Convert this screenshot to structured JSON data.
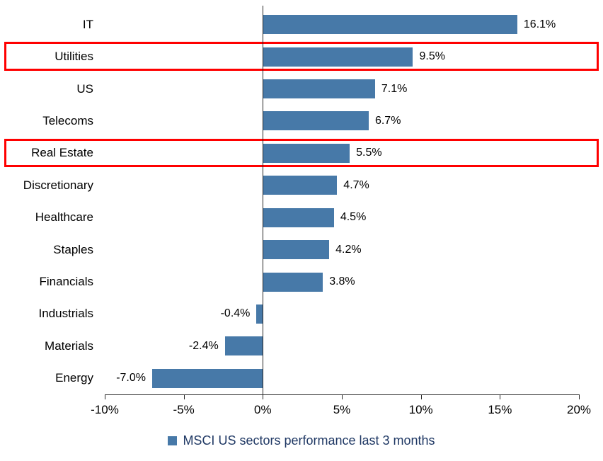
{
  "chart_data": {
    "type": "bar",
    "orientation": "horizontal",
    "title": "",
    "categories": [
      "IT",
      "Utilities",
      "US",
      "Telecoms",
      "Real Estate",
      "Discretionary",
      "Healthcare",
      "Staples",
      "Financials",
      "Industrials",
      "Materials",
      "Energy"
    ],
    "values": [
      16.1,
      9.5,
      7.1,
      6.7,
      5.5,
      4.7,
      4.5,
      4.2,
      3.8,
      -0.4,
      -2.4,
      -7.0
    ],
    "value_labels": [
      "16.1%",
      "9.5%",
      "7.1%",
      "6.7%",
      "5.5%",
      "4.7%",
      "4.5%",
      "4.2%",
      "3.8%",
      "-0.4%",
      "-2.4%",
      "-7.0%"
    ],
    "highlighted_categories": [
      "Utilities",
      "Real Estate"
    ],
    "highlight_indices": [
      1,
      4
    ],
    "xlim": [
      -10,
      20
    ],
    "x_ticks": [
      -10,
      -5,
      0,
      5,
      10,
      15,
      20
    ],
    "x_tick_labels": [
      "-10%",
      "-5%",
      "0%",
      "5%",
      "10%",
      "15%",
      "20%"
    ],
    "grid": false,
    "legend": "MSCI US sectors performance last 3 months",
    "legend_position": "bottom-center",
    "bar_color": "#4779A8",
    "highlight_color": "#FF0000",
    "axis_color": "#262626",
    "legend_text_color": "#1F3864"
  }
}
